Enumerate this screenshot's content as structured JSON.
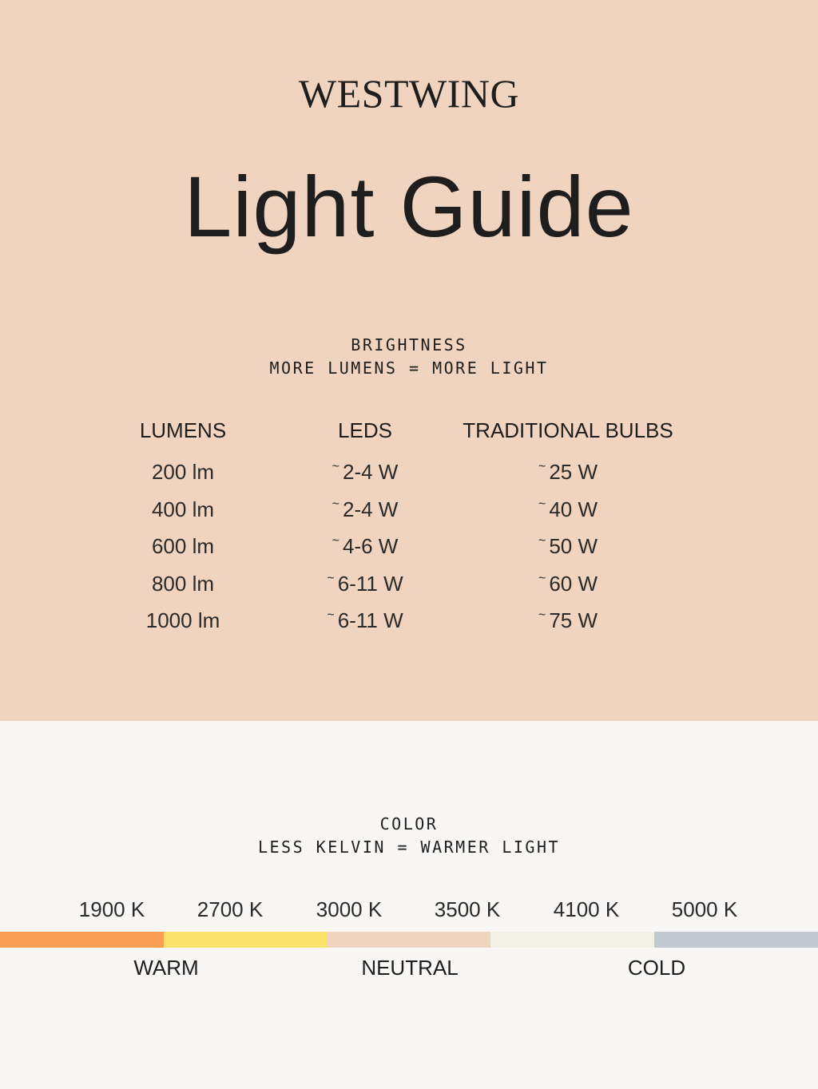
{
  "brand": "WESTWING",
  "title": "Light Guide",
  "brightness": {
    "heading": "BRIGHTNESS",
    "subheading": "MORE LUMENS = MORE LIGHT",
    "columns": [
      "LUMENS",
      "LEDS",
      "TRADITIONAL BULBS"
    ],
    "approx_symbol": "~",
    "rows": [
      {
        "lumens": "200 lm",
        "leds": "2-4 W",
        "bulbs": "25 W"
      },
      {
        "lumens": "400 lm",
        "leds": "2-4 W",
        "bulbs": "40 W"
      },
      {
        "lumens": "600 lm",
        "leds": "4-6 W",
        "bulbs": "50 W"
      },
      {
        "lumens": "800 lm",
        "leds": "6-11 W",
        "bulbs": "60 W"
      },
      {
        "lumens": "1000 lm",
        "leds": "6-11 W",
        "bulbs": "75 W"
      }
    ]
  },
  "color": {
    "heading": "COLOR",
    "subheading": "LESS KELVIN = WARMER LIGHT",
    "kelvins": [
      "1900 K",
      "2700 K",
      "3000 K",
      "3500 K",
      "4100 K",
      "5000 K"
    ],
    "scale_colors": [
      "#f99d55",
      "#f9e26a",
      "#f0d4bf",
      "#f3f0e6",
      "#c3c9d0"
    ],
    "zones": [
      "WARM",
      "NEUTRAL",
      "COLD"
    ]
  },
  "colors": {
    "top_background": "#f0d4bf",
    "bottom_background": "#f8f7f5",
    "text": "#1e1e1e"
  }
}
